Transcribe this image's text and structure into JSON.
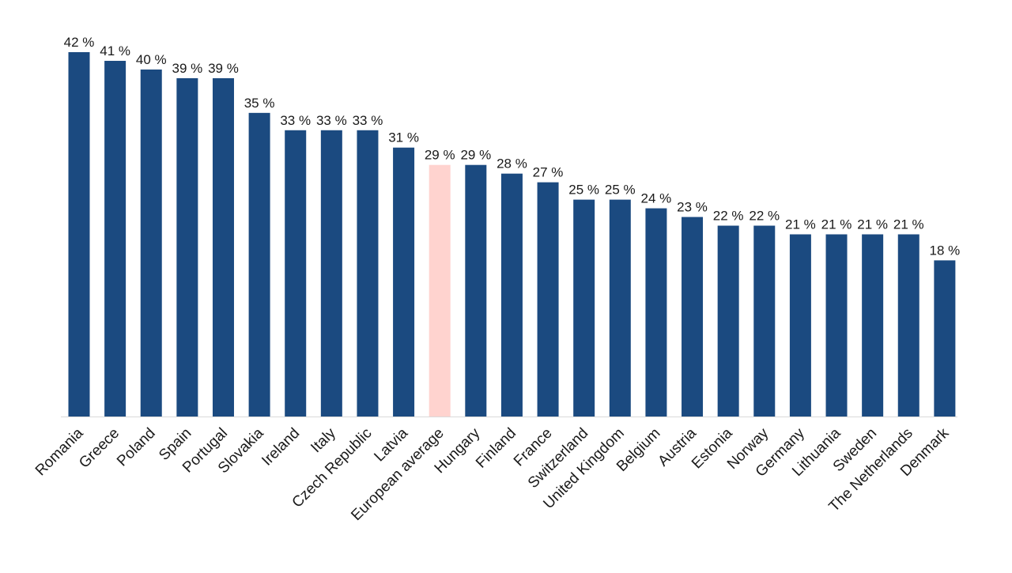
{
  "chart_data": {
    "type": "bar",
    "categories": [
      "Romania",
      "Greece",
      "Poland",
      "Spain",
      "Portugal",
      "Slovakia",
      "Ireland",
      "Italy",
      "Czech Republic",
      "Latvia",
      "European average",
      "Hungary",
      "Finland",
      "France",
      "Switzerland",
      "United Kingdom",
      "Belgium",
      "Austria",
      "Estonia",
      "Norway",
      "Germany",
      "Lithuania",
      "Sweden",
      "The Netherlands",
      "Denmark"
    ],
    "values": [
      42,
      41,
      40,
      39,
      39,
      35,
      33,
      33,
      33,
      31,
      29,
      29,
      28,
      27,
      25,
      25,
      24,
      23,
      22,
      22,
      21,
      21,
      21,
      21,
      18
    ],
    "value_labels": [
      "42 %",
      "41 %",
      "40 %",
      "39 %",
      "39 %",
      "35 %",
      "33 %",
      "33 %",
      "33 %",
      "31 %",
      "29 %",
      "29 %",
      "28 %",
      "27 %",
      "25 %",
      "25 %",
      "24 %",
      "23 %",
      "22 %",
      "22 %",
      "21 %",
      "21 %",
      "21 %",
      "21 %",
      "18 %"
    ],
    "highlight_category": "European average",
    "ylim": [
      0,
      42
    ],
    "grid": false,
    "colors": {
      "bar": "#1b4a80",
      "highlight": "#ffd3cf",
      "axis": "#d9d9d9"
    }
  }
}
